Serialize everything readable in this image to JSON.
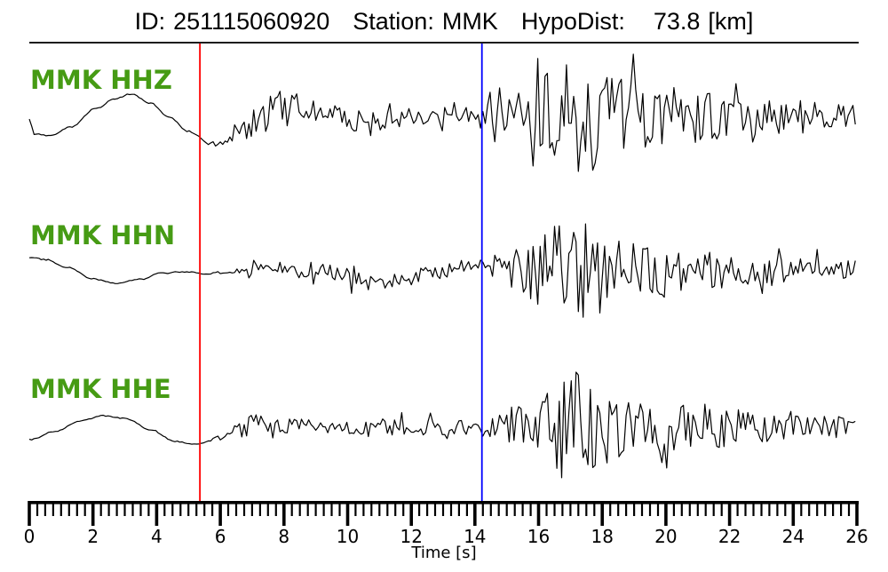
{
  "header": {
    "id_label": "ID:",
    "id_value": "251115060920",
    "station_label": "Station:",
    "station_value": "MMK",
    "hypodist_label": "HypoDist:",
    "hypodist_value": "73.8",
    "hypodist_unit": "[km]"
  },
  "colors": {
    "trace": "#000000",
    "p_pick": "#ff0000",
    "s_pick": "#0000ff",
    "label_green": "#469b14",
    "axis": "#000000",
    "separator": "#1c1c1c"
  },
  "chart_data": {
    "type": "line",
    "title": "ID: 251115060920  Station: MMK  HypoDist: 73.8 [km]",
    "xlabel": "Time [s]",
    "x_range": [
      0,
      26
    ],
    "x_major_tick": 2,
    "x_minor_tick": 0.25,
    "x_tick_labels": [
      "0",
      "2",
      "4",
      "6",
      "8",
      "10",
      "12",
      "14",
      "16",
      "18",
      "20",
      "22",
      "24",
      "26"
    ],
    "grid": false,
    "legend": "none",
    "picks": [
      {
        "name": "p-arrival",
        "time_s": 5.36,
        "color": "#ff0000"
      },
      {
        "name": "s-arrival",
        "time_s": 14.22,
        "color": "#0000ff"
      }
    ],
    "traces": [
      {
        "id": "hhz",
        "label": "MMK HHZ",
        "seed": 7,
        "lp": [
          [
            0,
            -4
          ],
          [
            0.15,
            -21
          ],
          [
            0.7,
            -22
          ],
          [
            1.3,
            -13
          ],
          [
            2.1,
            8
          ],
          [
            2.7,
            19
          ],
          [
            3.2,
            24
          ],
          [
            3.8,
            14
          ],
          [
            4.4,
            -2
          ],
          [
            5.0,
            -18
          ],
          [
            5.7,
            -32
          ],
          [
            6.2,
            -31
          ],
          [
            6.7,
            -20
          ],
          [
            7.3,
            -4
          ],
          [
            7.9,
            6
          ],
          [
            8.4,
            10
          ],
          [
            9.3,
            2
          ],
          [
            10.3,
            -6
          ],
          [
            11.3,
            -6
          ],
          [
            12.3,
            0
          ],
          [
            13.3,
            4
          ],
          [
            14.2,
            4
          ],
          [
            15.2,
            2
          ],
          [
            17,
            0
          ],
          [
            26,
            0
          ]
        ],
        "envelope": [
          [
            0,
            0.6
          ],
          [
            5.2,
            0.6
          ],
          [
            5.6,
            1.5
          ],
          [
            6.1,
            4
          ],
          [
            6.7,
            12
          ],
          [
            7.3,
            20
          ],
          [
            7.8,
            23
          ],
          [
            8.6,
            16
          ],
          [
            9.6,
            12
          ],
          [
            10.6,
            11
          ],
          [
            11.6,
            10
          ],
          [
            12.6,
            12
          ],
          [
            13.6,
            11
          ],
          [
            14.2,
            12
          ],
          [
            14.7,
            20
          ],
          [
            15.4,
            30
          ],
          [
            16.1,
            45
          ],
          [
            16.7,
            60
          ],
          [
            17.3,
            78
          ],
          [
            17.9,
            58
          ],
          [
            18.5,
            46
          ],
          [
            19.2,
            40
          ],
          [
            20.2,
            32
          ],
          [
            21.2,
            28
          ],
          [
            22.2,
            26
          ],
          [
            23.2,
            22
          ],
          [
            24.2,
            18
          ],
          [
            25.2,
            15
          ],
          [
            26,
            13
          ]
        ]
      },
      {
        "id": "hhn",
        "label": "MMK HHN",
        "seed": 13,
        "lp": [
          [
            0,
            15
          ],
          [
            0.5,
            13
          ],
          [
            1.2,
            4
          ],
          [
            2.0,
            -9
          ],
          [
            2.7,
            -14
          ],
          [
            3.5,
            -9
          ],
          [
            4.2,
            -2
          ],
          [
            4.9,
            -1
          ],
          [
            5.5,
            -3
          ],
          [
            6.2,
            -1
          ],
          [
            7.2,
            2
          ],
          [
            8.2,
            4
          ],
          [
            9.2,
            0
          ],
          [
            10.2,
            -10
          ],
          [
            10.9,
            -15
          ],
          [
            11.7,
            -11
          ],
          [
            12.7,
            -2
          ],
          [
            13.6,
            4
          ],
          [
            14.3,
            5
          ],
          [
            15.3,
            2
          ],
          [
            17,
            0
          ],
          [
            26,
            0
          ]
        ],
        "envelope": [
          [
            0,
            0.6
          ],
          [
            5.3,
            0.6
          ],
          [
            5.8,
            1.5
          ],
          [
            6.6,
            4
          ],
          [
            7.6,
            7
          ],
          [
            8.6,
            9
          ],
          [
            9.6,
            8
          ],
          [
            10.6,
            9
          ],
          [
            11.6,
            8
          ],
          [
            12.6,
            9
          ],
          [
            13.6,
            9
          ],
          [
            14.2,
            10
          ],
          [
            14.9,
            16
          ],
          [
            15.5,
            30
          ],
          [
            16.1,
            50
          ],
          [
            16.6,
            58
          ],
          [
            17.1,
            48
          ],
          [
            17.7,
            42
          ],
          [
            18.4,
            36
          ],
          [
            19.2,
            30
          ],
          [
            20.2,
            25
          ],
          [
            21.2,
            22
          ],
          [
            22.2,
            19
          ],
          [
            23.2,
            17
          ],
          [
            24.2,
            15
          ],
          [
            25.2,
            13
          ],
          [
            26,
            12
          ]
        ]
      },
      {
        "id": "hhe",
        "label": "MMK HHE",
        "seed": 29,
        "lp": [
          [
            0,
            -15
          ],
          [
            0.8,
            -6
          ],
          [
            1.6,
            6
          ],
          [
            2.3,
            12
          ],
          [
            3.0,
            9
          ],
          [
            3.8,
            -4
          ],
          [
            4.6,
            -17
          ],
          [
            5.2,
            -20
          ],
          [
            5.9,
            -14
          ],
          [
            6.5,
            -4
          ],
          [
            7.2,
            4
          ],
          [
            8.0,
            1
          ],
          [
            9.0,
            -2
          ],
          [
            10,
            -2
          ],
          [
            11,
            0
          ],
          [
            12,
            -2
          ],
          [
            13,
            -3
          ],
          [
            14.2,
            -2
          ],
          [
            15.5,
            0
          ],
          [
            26,
            0
          ]
        ],
        "envelope": [
          [
            0,
            0.6
          ],
          [
            5.3,
            0.6
          ],
          [
            5.8,
            3
          ],
          [
            6.3,
            8
          ],
          [
            6.9,
            12
          ],
          [
            7.6,
            9
          ],
          [
            8.6,
            8
          ],
          [
            9.6,
            8
          ],
          [
            10.6,
            9
          ],
          [
            11.6,
            9
          ],
          [
            12.6,
            10
          ],
          [
            13.6,
            10
          ],
          [
            14.2,
            12
          ],
          [
            14.9,
            18
          ],
          [
            15.6,
            30
          ],
          [
            16.3,
            48
          ],
          [
            16.9,
            63
          ],
          [
            17.5,
            58
          ],
          [
            18.1,
            44
          ],
          [
            18.8,
            36
          ],
          [
            19.6,
            30
          ],
          [
            20.6,
            26
          ],
          [
            21.6,
            25
          ],
          [
            22.6,
            21
          ],
          [
            23.6,
            18
          ],
          [
            24.6,
            15
          ],
          [
            25.4,
            13
          ],
          [
            26,
            11
          ]
        ]
      }
    ]
  }
}
